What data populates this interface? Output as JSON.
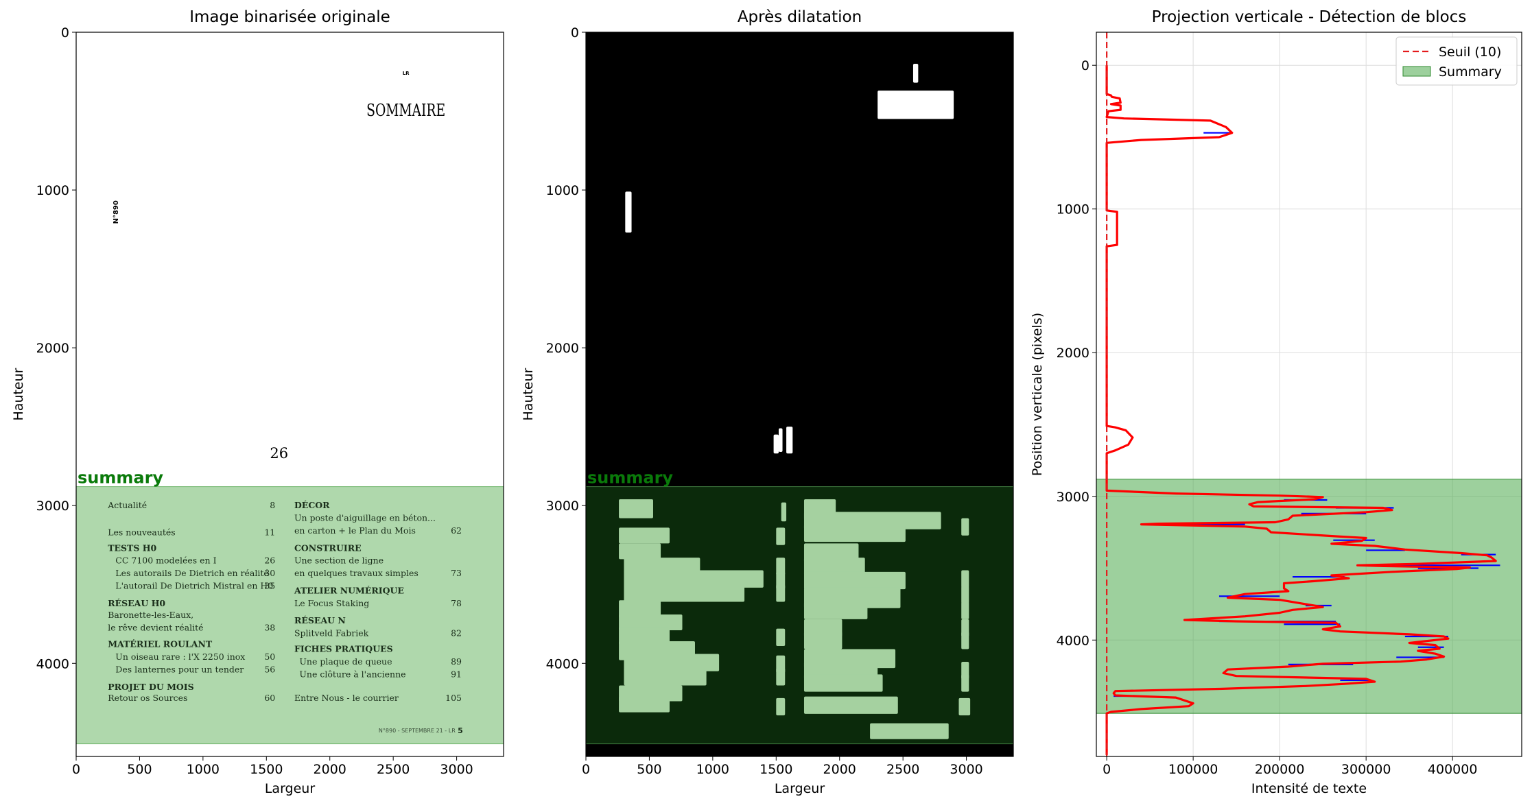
{
  "colors": {
    "summary_fill": "#9ecf9a",
    "summary_text": "#0a7a0a",
    "dark_summary": "#0b2a0b",
    "profile_line": "#ff0000",
    "profile_raw": "#0000ff",
    "threshold": "#e41a1c"
  },
  "chart_data": [
    {
      "type": "image",
      "title": "Image binarisée originale",
      "xlabel": "Largeur",
      "ylabel": "Hauteur",
      "xlim": [
        0,
        3370
      ],
      "ylim": [
        4590,
        0
      ],
      "xticks": [
        0,
        500,
        1000,
        1500,
        2000,
        2500,
        3000
      ],
      "yticks": [
        0,
        1000,
        2000,
        3000,
        4000
      ],
      "summary_region": {
        "label": "summary",
        "y_start": 2880,
        "y_end": 4510
      },
      "page_text": {
        "top_mark": "LR",
        "heading": "SOMMAIRE",
        "side_number": "N°890",
        "page_ref": "26",
        "left_entries": [
          {
            "text": "Actualité",
            "page": "8",
            "bold": false,
            "indent": false
          },
          {
            "text": "Les nouveautés",
            "page": "11",
            "bold": false,
            "indent": false
          },
          {
            "text": "TESTS H0",
            "page": "",
            "bold": true,
            "indent": false
          },
          {
            "text": "CC 7100 modelées en I",
            "page": "26",
            "bold": false,
            "indent": true
          },
          {
            "text": "Les autorails De Dietrich en réalité",
            "page": "30",
            "bold": false,
            "indent": true
          },
          {
            "text": "L'autorail De Dietrich Mistral en H0",
            "page": "35",
            "bold": false,
            "indent": true
          },
          {
            "text": "RÉSEAU H0",
            "page": "",
            "bold": true,
            "indent": false
          },
          {
            "text": "Baronette-les-Eaux,",
            "page": "",
            "bold": false,
            "indent": false
          },
          {
            "text": "le rêve devient réalité",
            "page": "38",
            "bold": false,
            "indent": false
          },
          {
            "text": "MATÉRIEL ROULANT",
            "page": "",
            "bold": true,
            "indent": false
          },
          {
            "text": "Un oiseau rare : l'X 2250 inox",
            "page": "50",
            "bold": false,
            "indent": true
          },
          {
            "text": "Des lanternes pour un tender",
            "page": "56",
            "bold": false,
            "indent": true
          },
          {
            "text": "PROJET DU MOIS",
            "page": "",
            "bold": true,
            "indent": false
          },
          {
            "text": "Retour os Sources",
            "page": "60",
            "bold": false,
            "indent": false
          }
        ],
        "right_entries": [
          {
            "text": "DÉCOR",
            "page": "",
            "bold": true,
            "indent": false
          },
          {
            "text": "Un poste d'aiguillage en béton...",
            "page": "",
            "bold": false,
            "indent": false
          },
          {
            "text": "en carton + le Plan du Mois",
            "page": "62",
            "bold": false,
            "indent": false
          },
          {
            "text": "CONSTRUIRE",
            "page": "",
            "bold": true,
            "indent": false
          },
          {
            "text": "Une section de ligne",
            "page": "",
            "bold": false,
            "indent": false
          },
          {
            "text": "en quelques travaux simples",
            "page": "73",
            "bold": false,
            "indent": false
          },
          {
            "text": "ATELIER NUMÉRIQUE",
            "page": "",
            "bold": true,
            "indent": false
          },
          {
            "text": "Le Focus Staking",
            "page": "78",
            "bold": false,
            "indent": false
          },
          {
            "text": "RÉSEAU N",
            "page": "",
            "bold": true,
            "indent": false
          },
          {
            "text": "Splitveld Fabriek",
            "page": "82",
            "bold": false,
            "indent": false
          },
          {
            "text": "FICHES PRATIQUES",
            "page": "",
            "bold": true,
            "indent": false
          },
          {
            "text": "Une plaque de queue",
            "page": "89",
            "bold": false,
            "indent": true
          },
          {
            "text": "Une clôture à l'ancienne",
            "page": "91",
            "bold": false,
            "indent": true
          },
          {
            "text": "Entre Nous - le courrier",
            "page": "105",
            "bold": false,
            "indent": false
          }
        ],
        "footer": "N°890 - SEPTEMBRE 21 - LR",
        "footer_page": "5"
      }
    },
    {
      "type": "image",
      "title": "Après dilatation",
      "xlabel": "Largeur",
      "ylabel": "Hauteur",
      "xlim": [
        0,
        3370
      ],
      "ylim": [
        4590,
        0
      ],
      "xticks": [
        0,
        500,
        1000,
        1500,
        2000,
        2500,
        3000
      ],
      "yticks": [
        0,
        1000,
        2000,
        3000,
        4000
      ],
      "summary_region": {
        "label": "summary",
        "y_start": 2880,
        "y_end": 4510
      }
    },
    {
      "type": "line",
      "title": "Projection verticale - Détection de blocs",
      "xlabel": "Intensité de texte",
      "ylabel": "Position verticale (pixels)",
      "xlim": [
        -12000,
        480000
      ],
      "ylim": [
        4810,
        -230
      ],
      "xticks": [
        0,
        100000,
        200000,
        300000,
        400000
      ],
      "yticks": [
        0,
        1000,
        2000,
        3000,
        4000
      ],
      "grid": true,
      "legend_position": "top-right",
      "threshold": {
        "name": "Seuil (10)",
        "x": 10
      },
      "summary_band": {
        "name": "Summary",
        "y_start": 2880,
        "y_end": 4510
      },
      "profile": [
        [
          0,
          0
        ],
        [
          0,
          200
        ],
        [
          5000,
          210
        ],
        [
          6000,
          220
        ],
        [
          15000,
          230
        ],
        [
          16000,
          260
        ],
        [
          5000,
          270
        ],
        [
          16000,
          280
        ],
        [
          16000,
          310
        ],
        [
          2000,
          320
        ],
        [
          0,
          360
        ],
        [
          20000,
          370
        ],
        [
          120000,
          385
        ],
        [
          138000,
          430
        ],
        [
          145000,
          470
        ],
        [
          130000,
          500
        ],
        [
          40000,
          520
        ],
        [
          0,
          540
        ],
        [
          0,
          1010
        ],
        [
          12000,
          1020
        ],
        [
          12000,
          1250
        ],
        [
          0,
          1260
        ],
        [
          0,
          2510
        ],
        [
          10000,
          2520
        ],
        [
          22000,
          2540
        ],
        [
          30000,
          2590
        ],
        [
          25000,
          2640
        ],
        [
          10000,
          2680
        ],
        [
          0,
          2700
        ],
        [
          0,
          2960
        ],
        [
          80000,
          2980
        ],
        [
          200000,
          2995
        ],
        [
          250000,
          3005
        ],
        [
          240000,
          3020
        ],
        [
          175000,
          3040
        ],
        [
          165000,
          3055
        ],
        [
          170000,
          3070
        ],
        [
          320000,
          3080
        ],
        [
          330000,
          3095
        ],
        [
          300000,
          3110
        ],
        [
          215000,
          3135
        ],
        [
          210000,
          3160
        ],
        [
          195000,
          3180
        ],
        [
          60000,
          3190
        ],
        [
          40000,
          3195
        ],
        [
          160000,
          3210
        ],
        [
          185000,
          3225
        ],
        [
          190000,
          3250
        ],
        [
          270000,
          3280
        ],
        [
          300000,
          3290
        ],
        [
          295000,
          3310
        ],
        [
          260000,
          3330
        ],
        [
          310000,
          3345
        ],
        [
          345000,
          3370
        ],
        [
          410000,
          3395
        ],
        [
          440000,
          3410
        ],
        [
          445000,
          3425
        ],
        [
          450000,
          3450
        ],
        [
          360000,
          3470
        ],
        [
          290000,
          3480
        ],
        [
          320000,
          3485
        ],
        [
          420000,
          3495
        ],
        [
          405000,
          3505
        ],
        [
          330000,
          3525
        ],
        [
          260000,
          3550
        ],
        [
          280000,
          3570
        ],
        [
          240000,
          3590
        ],
        [
          205000,
          3605
        ],
        [
          205000,
          3640
        ],
        [
          210000,
          3660
        ],
        [
          160000,
          3680
        ],
        [
          140000,
          3705
        ],
        [
          200000,
          3720
        ],
        [
          230000,
          3750
        ],
        [
          250000,
          3770
        ],
        [
          215000,
          3790
        ],
        [
          200000,
          3810
        ],
        [
          160000,
          3835
        ],
        [
          90000,
          3860
        ],
        [
          150000,
          3870
        ],
        [
          265000,
          3880
        ],
        [
          270000,
          3905
        ],
        [
          250000,
          3925
        ],
        [
          270000,
          3940
        ],
        [
          350000,
          3960
        ],
        [
          390000,
          3975
        ],
        [
          395000,
          3990
        ],
        [
          350000,
          4020
        ],
        [
          380000,
          4035
        ],
        [
          385000,
          4060
        ],
        [
          360000,
          4075
        ],
        [
          380000,
          4095
        ],
        [
          390000,
          4115
        ],
        [
          370000,
          4135
        ],
        [
          340000,
          4150
        ],
        [
          250000,
          4165
        ],
        [
          210000,
          4185
        ],
        [
          140000,
          4205
        ],
        [
          135000,
          4230
        ],
        [
          150000,
          4250
        ],
        [
          300000,
          4270
        ],
        [
          310000,
          4290
        ],
        [
          275000,
          4305
        ],
        [
          230000,
          4320
        ],
        [
          130000,
          4340
        ],
        [
          10000,
          4355
        ],
        [
          8000,
          4370
        ],
        [
          10000,
          4385
        ],
        [
          80000,
          4400
        ],
        [
          90000,
          4420
        ],
        [
          100000,
          4440
        ],
        [
          95000,
          4460
        ],
        [
          40000,
          4480
        ],
        [
          5000,
          4500
        ],
        [
          0,
          4510
        ],
        [
          0,
          4800
        ]
      ],
      "raw_spikes": [
        [
          112000,
          470,
          145000
        ],
        [
          205000,
          3025,
          255000
        ],
        [
          265000,
          3080,
          332000
        ],
        [
          225000,
          3120,
          300000
        ],
        [
          60000,
          3195,
          160000
        ],
        [
          262000,
          3305,
          310000
        ],
        [
          300000,
          3375,
          345000
        ],
        [
          410000,
          3405,
          450000
        ],
        [
          320000,
          3480,
          455000
        ],
        [
          360000,
          3500,
          430000
        ],
        [
          215000,
          3560,
          275000
        ],
        [
          130000,
          3695,
          200000
        ],
        [
          230000,
          3760,
          260000
        ],
        [
          130000,
          3870,
          265000
        ],
        [
          205000,
          3890,
          270000
        ],
        [
          345000,
          3975,
          395000
        ],
        [
          360000,
          4050,
          390000
        ],
        [
          335000,
          4120,
          390000
        ],
        [
          210000,
          4170,
          285000
        ],
        [
          270000,
          4280,
          305000
        ],
        [
          8000,
          4390,
          30000
        ]
      ]
    }
  ]
}
